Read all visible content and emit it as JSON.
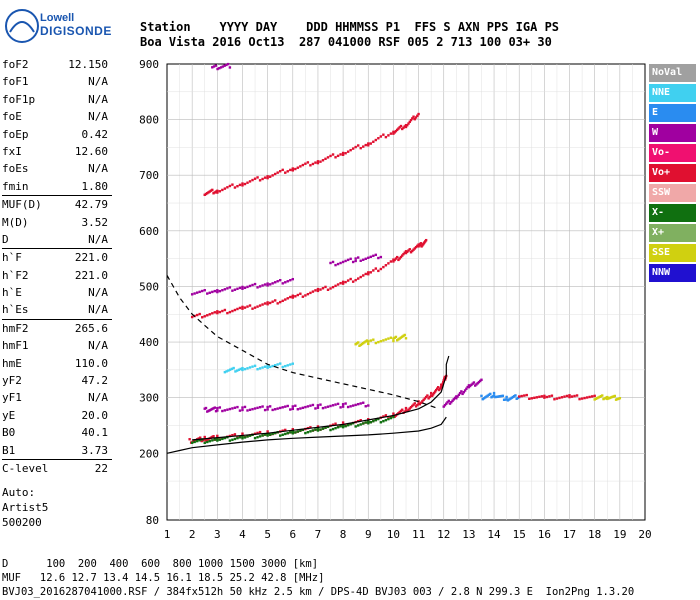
{
  "logo": {
    "brand_line1": "Lowell",
    "brand_line2": "DIGISONDE"
  },
  "header": {
    "line1": "Station    YYYY DAY    DDD HHMMSS P1  FFS S AXN PPS IGA PS",
    "line2": "Boa Vista 2016 Oct13  287 041000 RSF 005 2 713 100 03+ 30"
  },
  "params": [
    {
      "key": "foF2",
      "value": "12.150"
    },
    {
      "key": "foF1",
      "value": "N/A"
    },
    {
      "key": "foF1p",
      "value": "N/A"
    },
    {
      "key": "foE",
      "value": "N/A"
    },
    {
      "key": "foEp",
      "value": "0.42"
    },
    {
      "key": "fxI",
      "value": "12.60"
    },
    {
      "key": "foEs",
      "value": "N/A"
    },
    {
      "key": "fmin",
      "value": "1.80"
    },
    {
      "key": "MUF(D)",
      "value": "42.79"
    },
    {
      "key": "M(D)",
      "value": "3.52"
    },
    {
      "key": "D",
      "value": "N/A"
    },
    {
      "key": "h`F",
      "value": "221.0"
    },
    {
      "key": "h`F2",
      "value": "221.0"
    },
    {
      "key": "h`E",
      "value": "N/A"
    },
    {
      "key": "h`Es",
      "value": "N/A"
    },
    {
      "key": "hmF2",
      "value": "265.6"
    },
    {
      "key": "hmF1",
      "value": "N/A"
    },
    {
      "key": "hmE",
      "value": "110.0"
    },
    {
      "key": "yF2",
      "value": "47.2"
    },
    {
      "key": "yF1",
      "value": "N/A"
    },
    {
      "key": "yE",
      "value": "20.0"
    },
    {
      "key": "B0",
      "value": "40.1"
    },
    {
      "key": "B1",
      "value": "3.73"
    },
    {
      "key": "C-level",
      "value": "22"
    }
  ],
  "auto": {
    "line1": "Auto:",
    "line2": "Artist5",
    "line3": "500200"
  },
  "legend": [
    {
      "label": "NoVal",
      "color": "#a0a0a0"
    },
    {
      "label": "NNE",
      "color": "#40d0f0"
    },
    {
      "label": "E",
      "color": "#2a8cf0"
    },
    {
      "label": "W",
      "color": "#a000a0"
    },
    {
      "label": "Vo-",
      "color": "#f01070"
    },
    {
      "label": "Vo+",
      "color": "#e01030"
    },
    {
      "label": "SSW",
      "color": "#f0a8a8"
    },
    {
      "label": "X-",
      "color": "#107010"
    },
    {
      "label": "X+",
      "color": "#80b060"
    },
    {
      "label": "SSE",
      "color": "#d0d010"
    },
    {
      "label": "NNW",
      "color": "#2010d0"
    }
  ],
  "footer": {
    "line1": "D      100  200  400  600  800 1000 1500 3000 [km]",
    "line2": "MUF   12.6 12.7 13.4 14.5 16.1 18.5 25.2 42.8 [MHz]",
    "line3": "BVJ03_2016287041000.RSF / 384fx512h 50 kHz 2.5 km / DPS-4D BVJ03 003 / 2.8 N 299.3 E  Ion2Png 1.3.20"
  },
  "chart_data": {
    "type": "scatter",
    "xlim": [
      1,
      20
    ],
    "ylim": [
      80,
      900
    ],
    "x_ticks": [
      1,
      2,
      3,
      4,
      5,
      6,
      7,
      8,
      9,
      10,
      11,
      12,
      13,
      14,
      15,
      16,
      17,
      18,
      19,
      20
    ],
    "y_ticks": [
      80,
      200,
      300,
      400,
      500,
      600,
      700,
      800,
      900
    ],
    "grid": true,
    "legend_placement": "right",
    "series": [
      {
        "kind": "trace",
        "color": "#e01030",
        "x": [
          1.9,
          2.5,
          3,
          4,
          5,
          6,
          7,
          8,
          9,
          10,
          10.5,
          11,
          11.5,
          11.9,
          12.1
        ],
        "y": [
          222,
          226,
          228,
          232,
          236,
          240,
          245,
          252,
          258,
          268,
          278,
          290,
          305,
          320,
          340
        ]
      },
      {
        "kind": "trace",
        "color": "#e01030",
        "x": [
          2,
          3,
          4,
          5,
          6,
          7,
          8,
          9,
          10,
          10.5,
          11,
          11.3
        ],
        "y": [
          445,
          452,
          460,
          468,
          480,
          492,
          505,
          522,
          545,
          560,
          572,
          580
        ]
      },
      {
        "kind": "trace",
        "color": "#e01030",
        "x": [
          2.5,
          3,
          4,
          5,
          6,
          7,
          8,
          9,
          10,
          10.5,
          11
        ],
        "y": [
          668,
          672,
          685,
          698,
          712,
          725,
          740,
          757,
          778,
          790,
          810
        ]
      },
      {
        "kind": "trace",
        "color": "#a000a0",
        "x": [
          2.8,
          3.5
        ],
        "y": [
          893,
          897
        ]
      },
      {
        "kind": "trace",
        "color": "#40d0f0",
        "x": [
          3.3,
          4,
          5,
          6
        ],
        "y": [
          348,
          352,
          356,
          360
        ]
      },
      {
        "kind": "trace",
        "color": "#a000a0",
        "x": [
          2.5,
          3,
          4,
          5,
          6,
          7,
          8,
          9
        ],
        "y": [
          278,
          279,
          280,
          281,
          282,
          284,
          286,
          288
        ]
      },
      {
        "kind": "trace",
        "color": "#a000a0",
        "x": [
          12,
          12.5,
          13,
          13.5
        ],
        "y": [
          285,
          300,
          320,
          330
        ]
      },
      {
        "kind": "trace",
        "color": "#2a8cf0",
        "x": [
          13.5,
          14,
          14.5,
          15
        ],
        "y": [
          300,
          305,
          298,
          302
        ]
      },
      {
        "kind": "trace",
        "color": "#e01030",
        "x": [
          15,
          16,
          17,
          18
        ],
        "y": [
          302,
          300,
          301,
          300
        ]
      },
      {
        "kind": "trace",
        "color": "#d0d010",
        "x": [
          18,
          18.5,
          19
        ],
        "y": [
          300,
          301,
          299
        ]
      },
      {
        "kind": "trace",
        "color": "#d0d010",
        "x": [
          8.5,
          9,
          10,
          10.5
        ],
        "y": [
          395,
          400,
          405,
          410
        ]
      },
      {
        "kind": "trace",
        "color": "#a000a0",
        "x": [
          2,
          3,
          4,
          5,
          6
        ],
        "y": [
          488,
          492,
          498,
          504,
          512
        ]
      },
      {
        "kind": "trace",
        "color": "#a000a0",
        "x": [
          7.5,
          8.5,
          9.5
        ],
        "y": [
          540,
          548,
          555
        ]
      },
      {
        "kind": "trace",
        "color": "#107010",
        "x": [
          2,
          3,
          4,
          5,
          6,
          7,
          8,
          9,
          10
        ],
        "y": [
          220,
          224,
          228,
          233,
          237,
          242,
          248,
          255,
          263
        ]
      },
      {
        "kind": "profile",
        "style": "solid",
        "color": "#000",
        "x": [
          1,
          1.5,
          2,
          3,
          4,
          5,
          6,
          7,
          8,
          9,
          10,
          11,
          11.5,
          11.9,
          12.1
        ],
        "y": [
          200,
          205,
          210,
          215,
          220,
          224,
          227,
          229,
          231,
          233,
          236,
          240,
          245,
          252,
          265
        ]
      },
      {
        "kind": "profile",
        "style": "solid",
        "color": "#000",
        "x": [
          2,
          5,
          8,
          10,
          11,
          11.5,
          11.9,
          12.1,
          12.1,
          12.2
        ],
        "y": [
          224,
          236,
          252,
          268,
          280,
          292,
          310,
          340,
          360,
          375
        ]
      },
      {
        "kind": "profile",
        "style": "dashed",
        "color": "#000",
        "x": [
          1,
          1.5,
          2,
          2.5,
          3,
          4,
          5,
          6,
          7,
          8,
          9,
          10,
          11,
          11.8
        ],
        "y": [
          520,
          480,
          450,
          430,
          410,
          385,
          360,
          345,
          335,
          325,
          315,
          305,
          293,
          280
        ]
      }
    ]
  }
}
